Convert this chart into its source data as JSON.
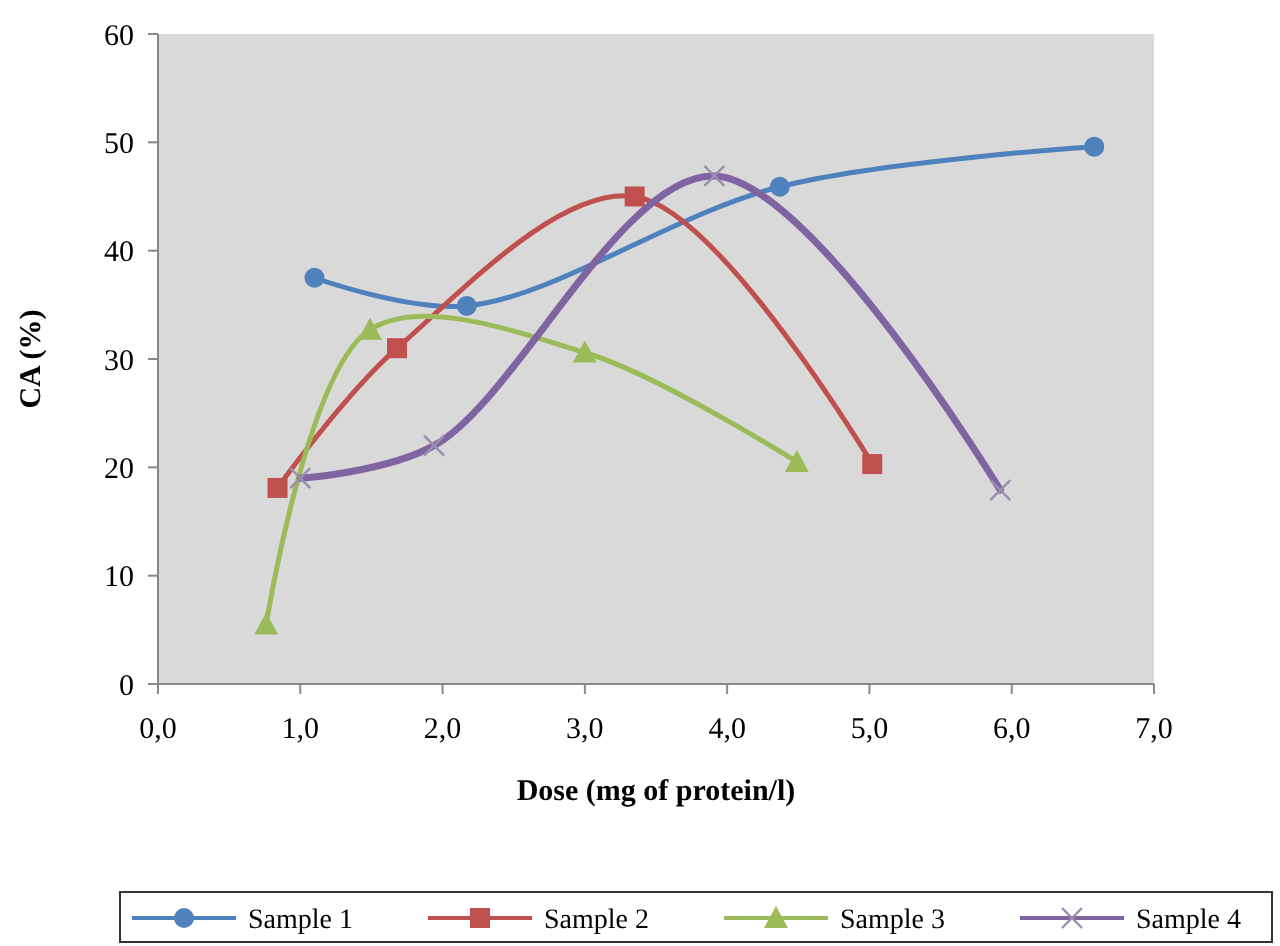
{
  "chart_data": {
    "type": "line",
    "xlabel": "Dose (mg of protein/l)",
    "ylabel": "CA (%)",
    "xlim": [
      0,
      7
    ],
    "xticks": [
      {
        "value": 0,
        "label": "0,0"
      },
      {
        "value": 1,
        "label": "1,0"
      },
      {
        "value": 2,
        "label": "2,0"
      },
      {
        "value": 3,
        "label": "3,0"
      },
      {
        "value": 4,
        "label": "4,0"
      },
      {
        "value": 5,
        "label": "5,0"
      },
      {
        "value": 6,
        "label": "6,0"
      },
      {
        "value": 7,
        "label": "7,0"
      }
    ],
    "ylim": [
      0,
      60
    ],
    "yticks": [
      0,
      10,
      20,
      30,
      40,
      50,
      60
    ],
    "grid": false,
    "legend": "bottom",
    "series": [
      {
        "name": "Sample 1",
        "color": "#4f81bd",
        "marker": "circle",
        "x": [
          1.1,
          2.17,
          4.37,
          6.58
        ],
        "values": [
          37.5,
          34.9,
          45.9,
          49.6
        ]
      },
      {
        "name": "Sample 2",
        "color": "#c0504d",
        "marker": "square",
        "x": [
          0.84,
          1.68,
          3.35,
          5.02
        ],
        "values": [
          18.1,
          31,
          45,
          20.3
        ]
      },
      {
        "name": "Sample 3",
        "color": "#9bbb59",
        "marker": "triangle",
        "x": [
          0.76,
          1.49,
          3.0,
          4.49
        ],
        "values": [
          5.5,
          32.7,
          30.6,
          20.5
        ]
      },
      {
        "name": "Sample 4",
        "color": "#8064a2",
        "marker": "cross",
        "x": [
          1.0,
          1.94,
          3.91,
          5.92
        ],
        "values": [
          19,
          22,
          46.9,
          17.9
        ]
      }
    ]
  }
}
